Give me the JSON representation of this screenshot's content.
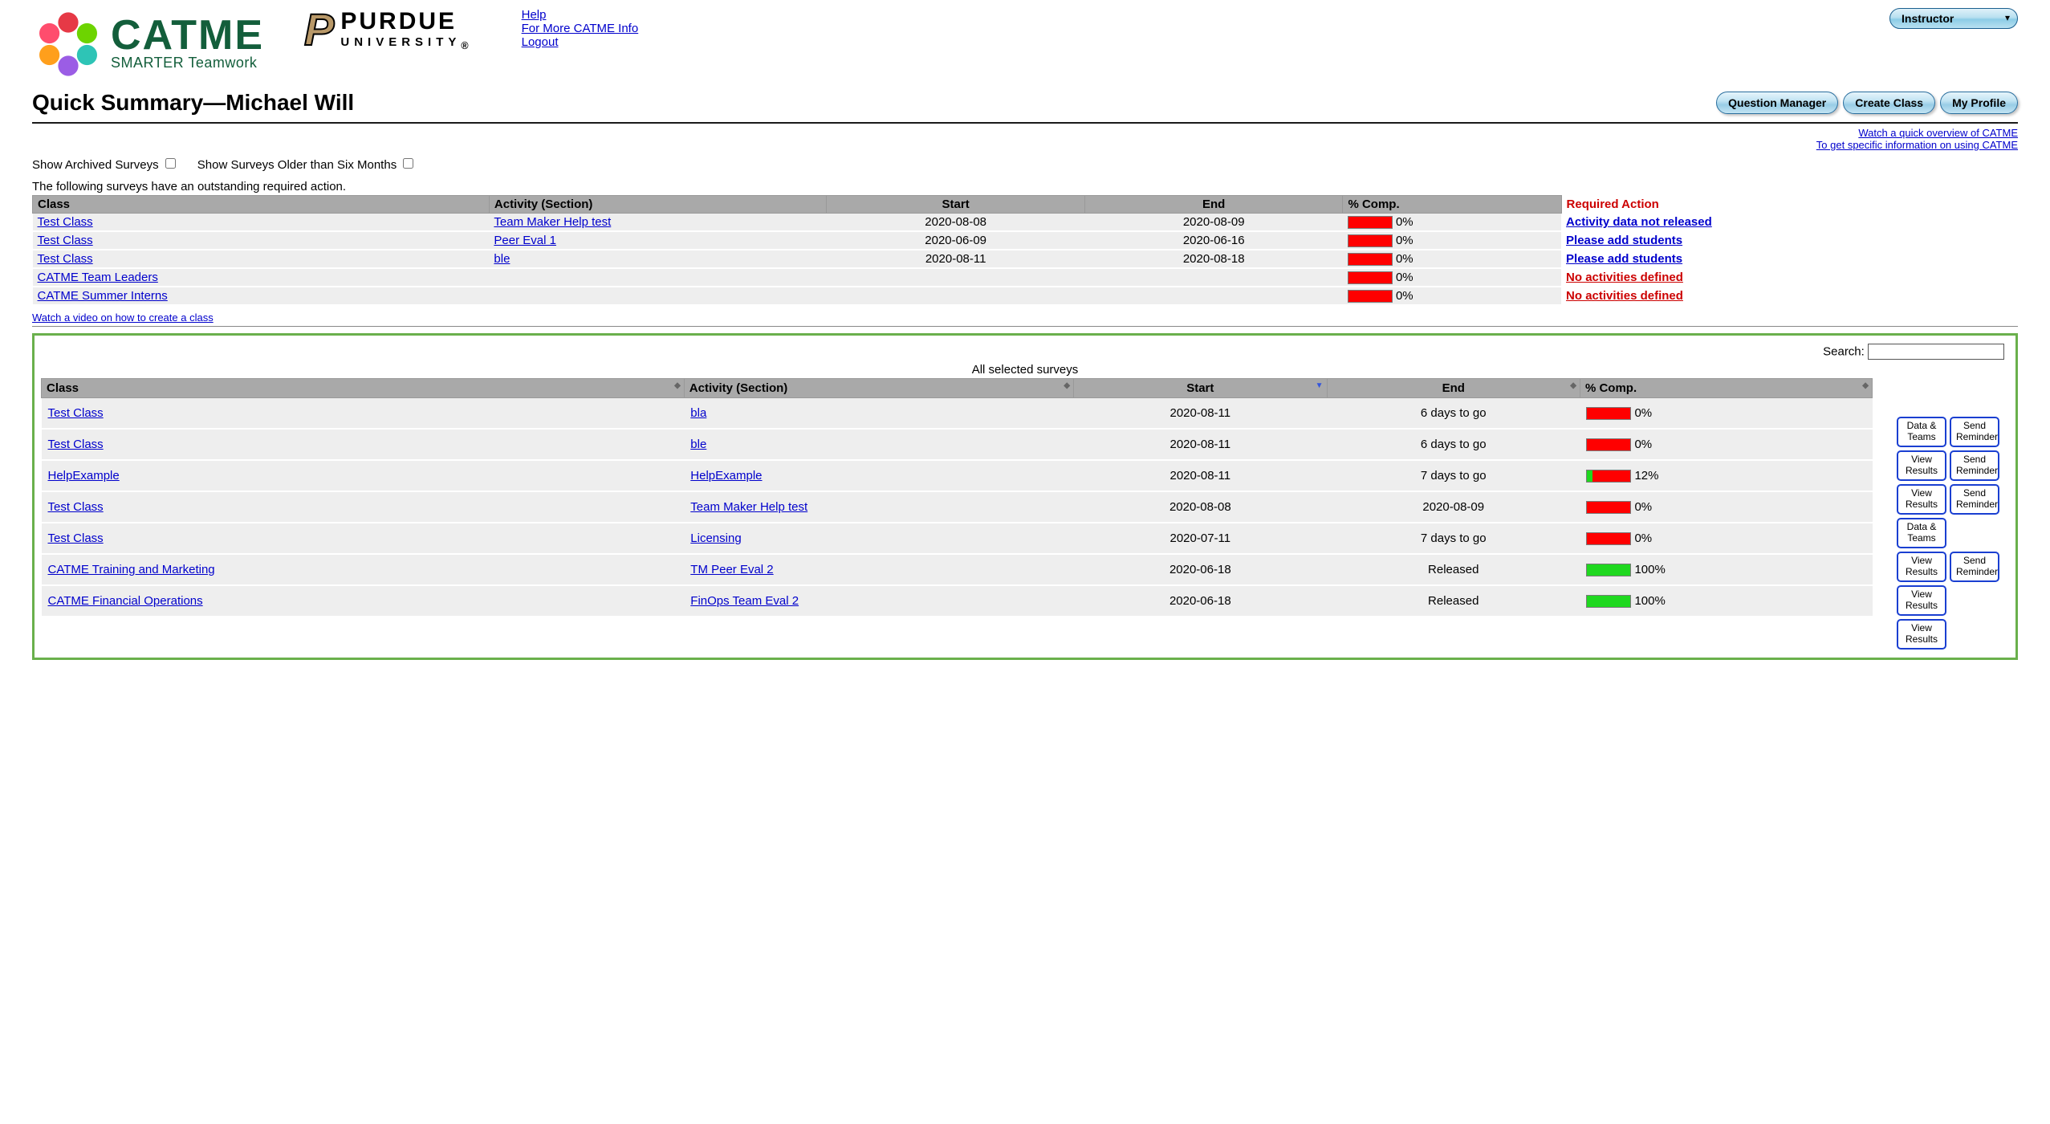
{
  "role_selected": "Instructor",
  "header_links": [
    "Help",
    "For More CATME Info",
    "Logout"
  ],
  "catme_brand": {
    "name": "CATME",
    "tagline": "SMARTER Teamwork"
  },
  "purdue_brand": {
    "name": "PURDUE",
    "university": "UNIVERSITY"
  },
  "page_title": "Quick Summary—Michael Will",
  "pill_buttons": [
    "Question Manager",
    "Create Class",
    "My Profile"
  ],
  "right_links": [
    "Watch a quick overview of CATME",
    "To get specific information on using CATME"
  ],
  "filters": {
    "archived_label": "Show Archived Surveys",
    "older_label": "Show Surveys Older than Six Months"
  },
  "outstanding_msg": "The following surveys have an outstanding required action.",
  "outstanding_headers": [
    "Class",
    "Activity (Section)",
    "Start",
    "End",
    "% Comp.",
    "Required Action"
  ],
  "outstanding_rows": [
    {
      "class": "Test Class",
      "activity": "Team Maker Help test",
      "start": "2020-08-08",
      "end": "2020-08-09",
      "pct": "0%",
      "bar_red_pct": 100,
      "bar_green_pct": 0,
      "action": "Activity data not released",
      "action_red": false
    },
    {
      "class": "Test Class",
      "activity": "Peer Eval 1",
      "start": "2020-06-09",
      "end": "2020-06-16",
      "pct": "0%",
      "bar_red_pct": 100,
      "bar_green_pct": 0,
      "action": "Please add students",
      "action_red": false
    },
    {
      "class": "Test Class",
      "activity": "ble",
      "start": "2020-08-11",
      "end": "2020-08-18",
      "pct": "0%",
      "bar_red_pct": 100,
      "bar_green_pct": 0,
      "action": "Please add students",
      "action_red": false
    },
    {
      "class": "CATME Team Leaders",
      "activity": "",
      "start": "",
      "end": "",
      "pct": "0%",
      "bar_red_pct": 100,
      "bar_green_pct": 0,
      "action": "No activities defined",
      "action_red": true
    },
    {
      "class": "CATME Summer Interns",
      "activity": "",
      "start": "",
      "end": "",
      "pct": "0%",
      "bar_red_pct": 100,
      "bar_green_pct": 0,
      "action": "No activities defined",
      "action_red": true
    }
  ],
  "create_class_video": "Watch a video on how to create a class",
  "search_label": "Search:",
  "all_caption": "All selected surveys",
  "all_headers": [
    "Class",
    "Activity (Section)",
    "Start",
    "End",
    "% Comp."
  ],
  "all_rows": [
    {
      "class": "Test Class",
      "activity": "bla",
      "start": "2020-08-11",
      "end": "6 days to go",
      "pct": "0%",
      "bar_red_pct": 100,
      "bar_green_pct": 0,
      "buttons": [
        "Data & Teams",
        "Send Reminder"
      ]
    },
    {
      "class": "Test Class",
      "activity": "ble",
      "start": "2020-08-11",
      "end": "6 days to go",
      "pct": "0%",
      "bar_red_pct": 100,
      "bar_green_pct": 0,
      "buttons": [
        "View Results",
        "Send Reminder"
      ]
    },
    {
      "class": "HelpExample",
      "activity": "HelpExample",
      "start": "2020-08-11",
      "end": "7 days to go",
      "pct": "12%",
      "bar_red_pct": 88,
      "bar_green_pct": 12,
      "buttons": [
        "View Results",
        "Send Reminder"
      ]
    },
    {
      "class": "Test Class",
      "activity": "Team Maker Help test",
      "start": "2020-08-08",
      "end": "2020-08-09",
      "pct": "0%",
      "bar_red_pct": 100,
      "bar_green_pct": 0,
      "buttons": [
        "Data & Teams"
      ]
    },
    {
      "class": "Test Class",
      "activity": "Licensing",
      "start": "2020-07-11",
      "end": "7 days to go",
      "pct": "0%",
      "bar_red_pct": 100,
      "bar_green_pct": 0,
      "buttons": [
        "View Results",
        "Send Reminder"
      ]
    },
    {
      "class": "CATME Training and Marketing",
      "activity": "TM Peer Eval 2",
      "start": "2020-06-18",
      "end": "Released",
      "pct": "100%",
      "bar_red_pct": 0,
      "bar_green_pct": 100,
      "buttons": [
        "View Results"
      ]
    },
    {
      "class": "CATME Financial Operations",
      "activity": "FinOps Team Eval 2",
      "start": "2020-06-18",
      "end": "Released",
      "pct": "100%",
      "bar_red_pct": 0,
      "bar_green_pct": 100,
      "buttons": [
        "View Results"
      ]
    }
  ],
  "colors": {
    "brand_green": "#135e3b",
    "link_blue": "#0000cc",
    "req_red": "#cc0000",
    "bar_red": "#ff0000",
    "bar_green": "#1fd81f",
    "header_gray": "#a9a9a9",
    "row_gray": "#eeeeee",
    "highlight_border": "#6ab04c"
  }
}
